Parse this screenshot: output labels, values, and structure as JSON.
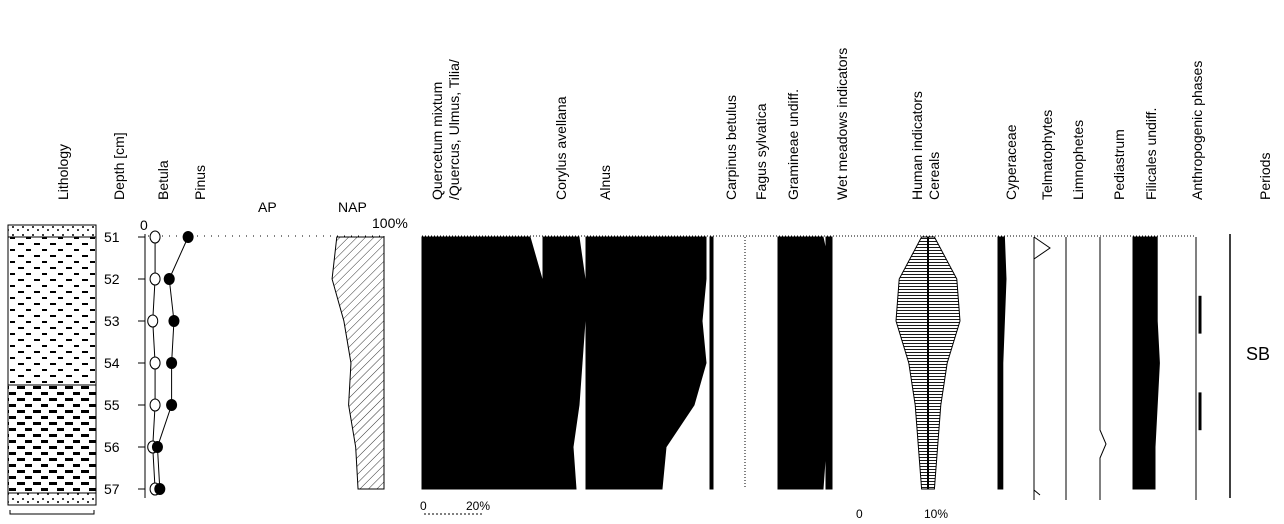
{
  "chart_data": {
    "type": "area",
    "depth_axis_label": "Depth [cm]",
    "depths": [
      51,
      52,
      53,
      54,
      55,
      56,
      57
    ],
    "column_headers": {
      "lithology": "Lithology",
      "betula": "Betula",
      "pinus": "Pinus",
      "ap": "AP",
      "nap": "NAP",
      "quercetum": "Quercetum mixtum\n/Quercus, Ulmus, Tilia/",
      "corylus": "Corylus avellana",
      "alnus": "Alnus",
      "carpinus": "Carpinus betulus",
      "fagus": "Fagus sylvatica",
      "gramineae": "Gramineae undiff.",
      "wet_meadows": "Wet meadows indicators",
      "human": "Human indicators\nCereals",
      "cyperaceae": "Cyperaceae",
      "telmatophytes": "Telmatophytes",
      "limnophetes": "Limnophetes",
      "pediastrum": "Pediastrum",
      "filicales": "Filicales undiff.",
      "anthropogenic": "Anthropogenic phases",
      "periods": "Periods"
    },
    "apnap_axis": {
      "zero": "0",
      "hundred": "100%"
    },
    "scale_bar_1": {
      "zero": "0",
      "max": "20%"
    },
    "scale_bar_2": {
      "zero": "0",
      "max": "10%"
    },
    "series": {
      "betula": [
        3,
        3,
        2,
        3,
        3,
        2,
        3
      ],
      "pinus": [
        17,
        9,
        11,
        10,
        10,
        4,
        5
      ],
      "nap": [
        20,
        22,
        17,
        14,
        15,
        12,
        11
      ],
      "quercetum": [
        36,
        40,
        42,
        42,
        43,
        46,
        42
      ],
      "corylus": [
        12,
        14,
        14,
        13,
        12,
        10,
        11
      ],
      "alnus": [
        30,
        30,
        29,
        30,
        27,
        20,
        19
      ],
      "carpinus": [
        1,
        1,
        1,
        1,
        1,
        1,
        1
      ],
      "gramineae": [
        15,
        18,
        17,
        16,
        16,
        16,
        15
      ],
      "wet_meadows": [
        2,
        2,
        2,
        2,
        2,
        2,
        2
      ],
      "cereals_half_width": [
        2,
        9,
        10,
        6,
        4,
        3,
        2
      ],
      "cyperaceae": [
        4,
        5,
        4,
        3,
        3,
        3,
        3
      ],
      "filicales": [
        11,
        11,
        11,
        12,
        11,
        10,
        10
      ]
    },
    "zones": [
      {
        "label": "SB",
        "from": 51,
        "to": 57
      }
    ],
    "anthropogenic_phases": [
      {
        "from": 52.4,
        "to": 53.3
      },
      {
        "from": 54.7,
        "to": 55.6
      }
    ]
  }
}
